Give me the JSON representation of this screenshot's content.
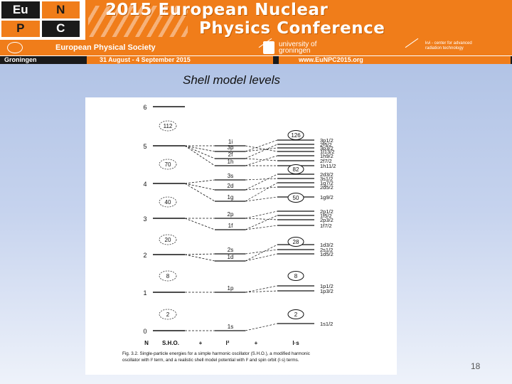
{
  "header": {
    "logo_letters": [
      "Eu",
      "N",
      "P",
      "C"
    ],
    "title_line1": "2015 European Nuclear",
    "title_line2": "Physics Conference",
    "society": "European Physical Society",
    "university_line1": "university of",
    "university_line2": "groningen",
    "kvi_line1": "kvi - center for advanced",
    "kvi_line2": "radiation technology",
    "city": "Groningen",
    "dates": "31 August - 4 September 2015",
    "website": "www.EuNPC2015.org"
  },
  "slide": {
    "title": "Shell model levels",
    "page_number": "18"
  },
  "figure": {
    "column_labels": [
      "N",
      "S.H.O.",
      "+",
      "l²",
      "+",
      "l·s"
    ],
    "caption_line1": "Fig. 3.2. Single-particle energies for a simple harmonic oscillator (S.H.O.), a modified harmonic",
    "caption_line2": "oscillator with l² term, and a realistic shell model potential with l² and spin orbit (l·s) terms.",
    "sho_levels": [
      {
        "N": "6",
        "magic": "112"
      },
      {
        "N": "5",
        "magic": "70"
      },
      {
        "N": "4",
        "magic": "40"
      },
      {
        "N": "3",
        "magic": "20"
      },
      {
        "N": "2",
        "magic": "8"
      },
      {
        "N": "1",
        "magic": "2"
      },
      {
        "N": "0",
        "magic": ""
      }
    ],
    "l2_levels": [
      "1i",
      "3p",
      "2f",
      "1h",
      "3s",
      "2d",
      "1g",
      "2p",
      "1f",
      "2s",
      "1d",
      "1p",
      "1s"
    ],
    "ls_magic": [
      "126",
      "82",
      "50",
      "28",
      "8",
      "2"
    ],
    "ls_levels": [
      "3p1/2",
      "2f5/2",
      "3p3/2",
      "1i13/2",
      "1h9/2",
      "2f7/2",
      "1h11/2",
      "2d3/2",
      "3s1/2",
      "1g7/2",
      "2d5/2",
      "1g9/2",
      "2p1/2",
      "1f5/2",
      "2p3/2",
      "1f7/2",
      "1d3/2",
      "2s1/2",
      "1d5/2",
      "1p1/2",
      "1p3/2",
      "1s1/2"
    ]
  }
}
